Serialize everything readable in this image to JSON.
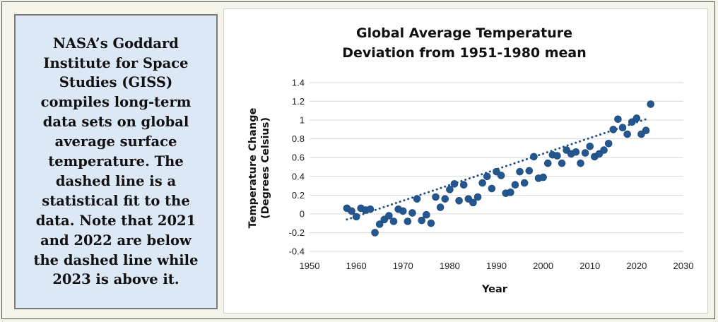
{
  "caption": {
    "lines": [
      "NASA’s Goddard",
      "Institute for Space",
      "Studies (GISS)",
      "compiles long-term",
      "data sets on global",
      "average surface",
      "temperature. The",
      "dashed line is a",
      "statistical fit to the",
      "data.  Note that 2021",
      "and 2022 are below",
      "the dashed line while",
      "2023 is above it."
    ]
  },
  "chart_data": {
    "type": "scatter",
    "title": [
      "Global Average Temperature",
      "Deviation from 1951-1980 mean"
    ],
    "xlabel": "Year",
    "ylabel": [
      "Temperature Change",
      "(Degrees Celsius)"
    ],
    "xlim": [
      1950,
      2030
    ],
    "ylim": [
      -0.4,
      1.4
    ],
    "xticks": [
      1950,
      1960,
      1970,
      1980,
      1990,
      2000,
      2010,
      2020,
      2030
    ],
    "yticks": [
      -0.4,
      -0.2,
      0,
      0.2,
      0.4,
      0.6,
      0.8,
      1,
      1.2,
      1.4
    ],
    "ytick_labels": [
      "-0.4",
      "-0.2",
      "0",
      "0.2",
      "0.4",
      "0.6",
      "0.8",
      "1",
      "1.2",
      "1.4"
    ],
    "grid": "horizontal",
    "marker_color": "#24578f",
    "trend_color": "#1f4f86",
    "trendline": {
      "style": "dotted",
      "x": [
        1958,
        2022
      ],
      "y": [
        -0.06,
        1.01
      ]
    },
    "x": [
      1958,
      1959,
      1960,
      1961,
      1962,
      1963,
      1964,
      1965,
      1966,
      1967,
      1968,
      1969,
      1970,
      1971,
      1972,
      1973,
      1974,
      1975,
      1976,
      1977,
      1978,
      1979,
      1980,
      1981,
      1982,
      1983,
      1984,
      1985,
      1986,
      1987,
      1988,
      1989,
      1990,
      1991,
      1992,
      1993,
      1994,
      1995,
      1996,
      1997,
      1998,
      1999,
      2000,
      2001,
      2002,
      2003,
      2004,
      2005,
      2006,
      2007,
      2008,
      2009,
      2010,
      2011,
      2012,
      2013,
      2014,
      2015,
      2016,
      2017,
      2018,
      2019,
      2020,
      2021,
      2022,
      2023
    ],
    "y": [
      0.06,
      0.03,
      -0.03,
      0.06,
      0.04,
      0.05,
      -0.2,
      -0.11,
      -0.06,
      -0.02,
      -0.08,
      0.05,
      0.03,
      -0.08,
      0.01,
      0.16,
      -0.07,
      -0.01,
      -0.1,
      0.18,
      0.07,
      0.16,
      0.26,
      0.32,
      0.14,
      0.31,
      0.16,
      0.12,
      0.18,
      0.33,
      0.4,
      0.27,
      0.45,
      0.41,
      0.22,
      0.23,
      0.31,
      0.45,
      0.33,
      0.46,
      0.61,
      0.38,
      0.39,
      0.54,
      0.63,
      0.62,
      0.54,
      0.68,
      0.64,
      0.66,
      0.54,
      0.65,
      0.72,
      0.61,
      0.64,
      0.68,
      0.75,
      0.9,
      1.01,
      0.92,
      0.85,
      0.98,
      1.02,
      0.85,
      0.89,
      1.17
    ]
  }
}
